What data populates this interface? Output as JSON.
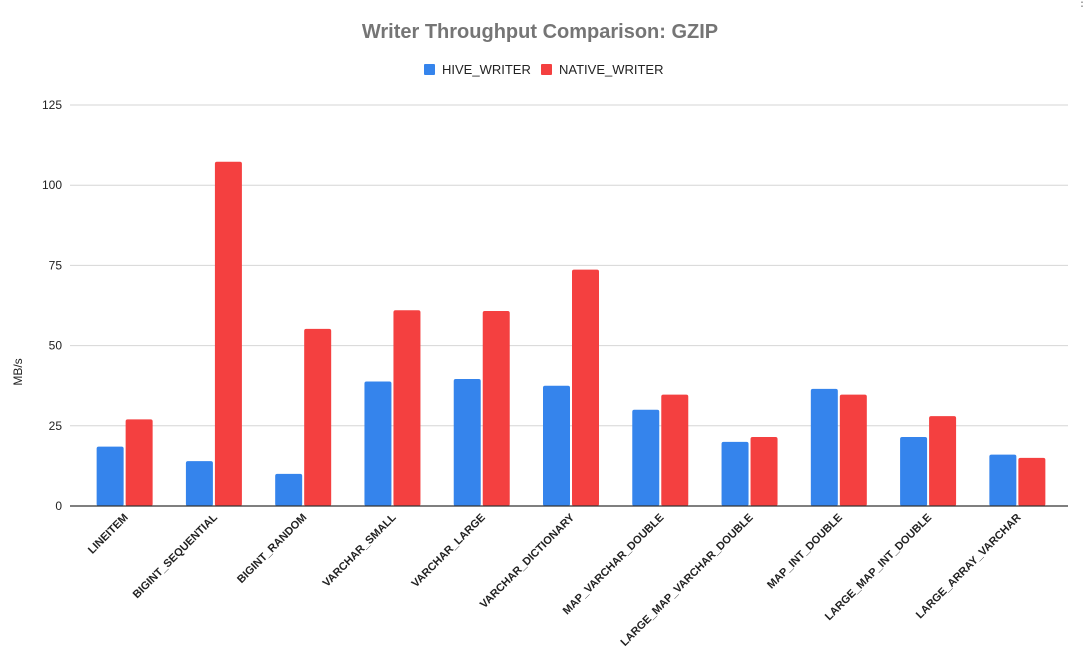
{
  "chart_data": {
    "type": "bar",
    "title": "Writer Throughput Comparison: GZIP",
    "xlabel": "",
    "ylabel": "MB/s",
    "ylim": [
      0,
      125
    ],
    "yticks": [
      0,
      25,
      50,
      75,
      100,
      125
    ],
    "grid": true,
    "legend_position": "top-center",
    "categories": [
      "LINEITEM",
      "BIGINT_SEQUENTIAL",
      "BIGINT_RANDOM",
      "VARCHAR_SMALL",
      "VARCHAR_LARGE",
      "VARCHAR_DICTIONARY",
      "MAP_VARCHAR_DOUBLE",
      "LARGE_MAP_VARCHAR_DOUBLE",
      "MAP_INT_DOUBLE",
      "LARGE_MAP_INT_DOUBLE",
      "LARGE_ARRAY_VARCHAR"
    ],
    "series": [
      {
        "name": "HIVE_WRITER",
        "color": "#3584ec",
        "values": [
          18.5,
          14,
          10,
          38.8,
          39.6,
          37.5,
          30,
          20,
          36.5,
          21.5,
          16
        ]
      },
      {
        "name": "NATIVE_WRITER",
        "color": "#f44040",
        "values": [
          27,
          107.3,
          55.2,
          61,
          60.8,
          73.7,
          34.7,
          21.5,
          34.7,
          28,
          15
        ]
      }
    ]
  }
}
